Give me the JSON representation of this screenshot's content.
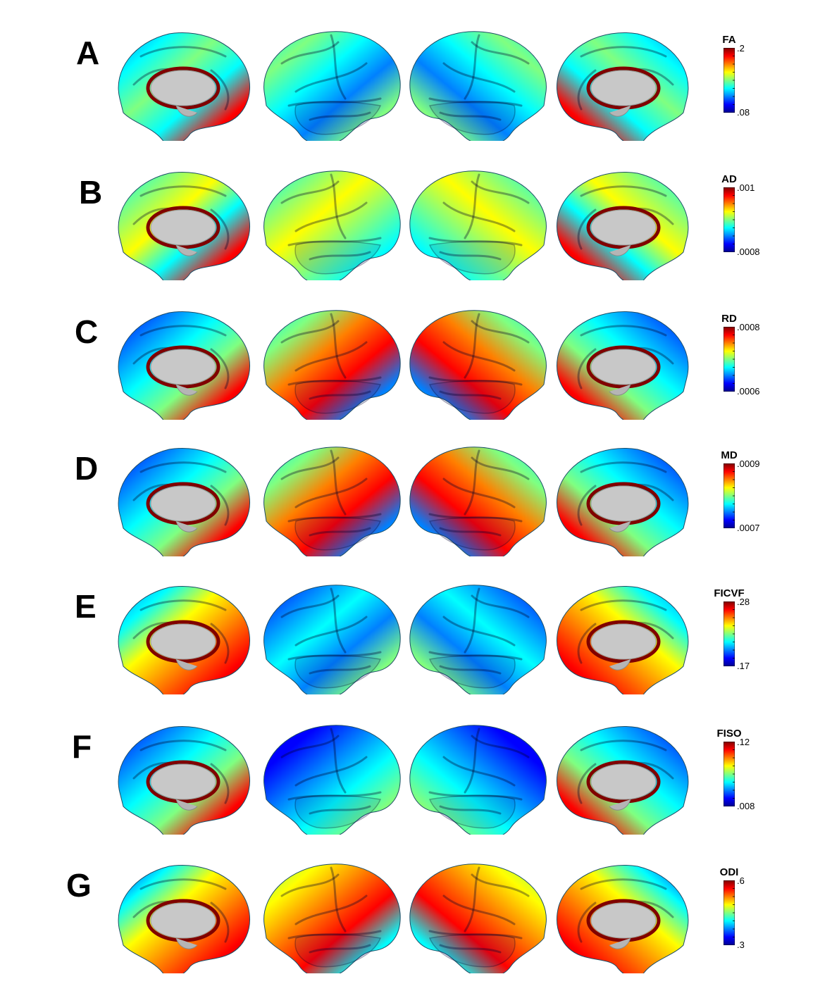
{
  "panels": [
    {
      "letter": "A",
      "measure": "FA",
      "max": ".2",
      "min": ".08"
    },
    {
      "letter": "B",
      "measure": "AD",
      "max": ".001",
      "min": ".0008"
    },
    {
      "letter": "C",
      "measure": "RD",
      "max": ".0008",
      "min": ".0006"
    },
    {
      "letter": "D",
      "measure": "MD",
      "max": ".0009",
      "min": ".0007"
    },
    {
      "letter": "E",
      "measure": "FICVF",
      "max": ".28",
      "min": ".17"
    },
    {
      "letter": "F",
      "measure": "FISO",
      "max": ".12",
      "min": ".008"
    },
    {
      "letter": "G",
      "measure": "ODI",
      "max": ".6",
      "min": ".3"
    }
  ],
  "views": [
    "left-medial",
    "left-lateral",
    "right-lateral",
    "right-medial"
  ],
  "colormap": [
    "#00008f",
    "#0000ff",
    "#0080ff",
    "#00ffff",
    "#80ff80",
    "#ffff00",
    "#ff8000",
    "#ff0000",
    "#800000"
  ],
  "cortex_base_color": "#2fb0c8",
  "subcortical_color": "#c8c8c8"
}
